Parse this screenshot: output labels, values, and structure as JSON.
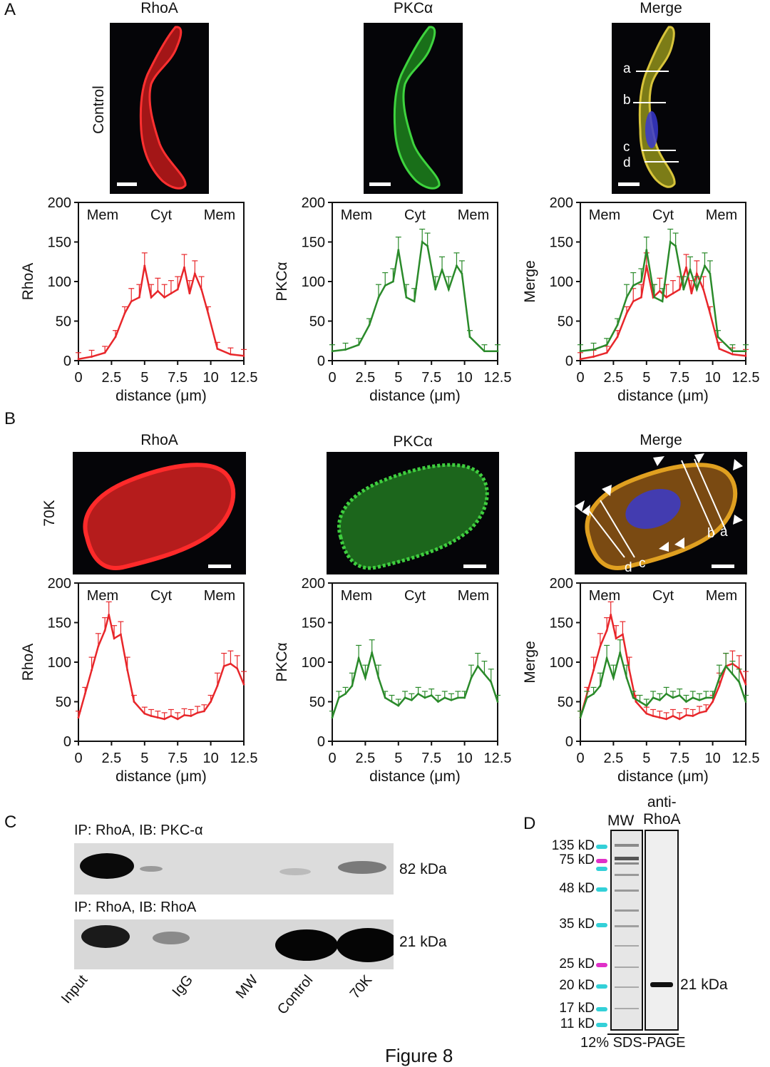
{
  "panels": {
    "A": "A",
    "B": "B",
    "C": "C",
    "D": "D"
  },
  "panelA": {
    "titles": [
      "RhoA",
      "PKCα",
      "Merge"
    ],
    "row_label": "Control",
    "line_labels": [
      "a",
      "b",
      "c",
      "d"
    ]
  },
  "panelB": {
    "titles": [
      "RhoA",
      "PKCα",
      "Merge"
    ],
    "row_label": "70K",
    "line_labels": [
      "a",
      "b",
      "c",
      "d"
    ]
  },
  "chart_data": [
    {
      "id": "A-RhoA",
      "type": "line",
      "ylabel": "RhoA",
      "xlabel": "distance (μm)",
      "ylim": [
        0,
        200
      ],
      "xlim": [
        0,
        12.5
      ],
      "yticks": [
        0,
        50,
        100,
        150,
        200
      ],
      "xticks": [
        "0",
        "2.5",
        "5",
        "7.5",
        "10",
        "12.5"
      ],
      "annotations": [
        "Mem",
        "Cyt",
        "Mem"
      ],
      "series": [
        {
          "color": "#e8262a",
          "x": [
            0,
            1,
            2,
            2.8,
            3.5,
            4,
            4.6,
            5,
            5.5,
            6,
            6.5,
            7,
            7.5,
            8,
            8.4,
            8.8,
            9.3,
            9.8,
            10.5,
            11.5,
            12.5
          ],
          "y": [
            2,
            5,
            10,
            30,
            60,
            75,
            80,
            120,
            80,
            88,
            80,
            85,
            90,
            118,
            85,
            110,
            90,
            60,
            15,
            8,
            6
          ]
        }
      ]
    },
    {
      "id": "A-PKC",
      "type": "line",
      "ylabel": "PKCα",
      "xlabel": "distance (μm)",
      "ylim": [
        0,
        200
      ],
      "xlim": [
        0,
        12.5
      ],
      "yticks": [
        0,
        50,
        100,
        150,
        200
      ],
      "xticks": [
        "0",
        "2.5",
        "5",
        "7.5",
        "10",
        "12.5"
      ],
      "annotations": [
        "Mem",
        "Cyt",
        "Mem"
      ],
      "series": [
        {
          "color": "#2a8a2a",
          "x": [
            0,
            1,
            2,
            2.8,
            3.5,
            4,
            4.6,
            5,
            5.6,
            6.2,
            6.8,
            7.2,
            7.8,
            8.3,
            8.8,
            9.4,
            9.8,
            10.4,
            11.5,
            12.5
          ],
          "y": [
            12,
            14,
            20,
            45,
            80,
            95,
            100,
            140,
            80,
            75,
            150,
            145,
            90,
            115,
            90,
            120,
            110,
            30,
            12,
            12
          ]
        }
      ]
    },
    {
      "id": "A-Merge",
      "type": "line",
      "ylabel": "Merge",
      "xlabel": "distance (μm)",
      "ylim": [
        0,
        200
      ],
      "xlim": [
        0,
        12.5
      ],
      "yticks": [
        0,
        50,
        100,
        150,
        200
      ],
      "xticks": [
        "0",
        "2.5",
        "5",
        "7.5",
        "10",
        "12.5"
      ],
      "annotations": [
        "Mem",
        "Cyt",
        "Mem"
      ],
      "series": [
        {
          "color": "#e8262a",
          "x": [
            0,
            1,
            2,
            2.8,
            3.5,
            4,
            4.6,
            5,
            5.5,
            6,
            6.5,
            7,
            7.5,
            8,
            8.4,
            8.8,
            9.3,
            9.8,
            10.5,
            11.5,
            12.5
          ],
          "y": [
            2,
            5,
            10,
            30,
            60,
            75,
            80,
            120,
            80,
            88,
            80,
            85,
            90,
            118,
            85,
            110,
            90,
            60,
            15,
            8,
            6
          ]
        },
        {
          "color": "#2a8a2a",
          "x": [
            0,
            1,
            2,
            2.8,
            3.5,
            4,
            4.6,
            5,
            5.6,
            6.2,
            6.8,
            7.2,
            7.8,
            8.3,
            8.8,
            9.4,
            9.8,
            10.4,
            11.5,
            12.5
          ],
          "y": [
            12,
            14,
            20,
            45,
            80,
            95,
            100,
            140,
            80,
            75,
            150,
            145,
            90,
            115,
            90,
            120,
            110,
            30,
            12,
            12
          ]
        }
      ]
    },
    {
      "id": "B-RhoA",
      "type": "line",
      "ylabel": "RhoA",
      "xlabel": "distance (μm)",
      "ylim": [
        0,
        200
      ],
      "xlim": [
        0,
        12.5
      ],
      "yticks": [
        0,
        50,
        100,
        150,
        200
      ],
      "xticks": [
        "0",
        "2.5",
        "5",
        "7.5",
        "10",
        "12.5"
      ],
      "annotations": [
        "Mem",
        "Cyt",
        "Mem"
      ],
      "series": [
        {
          "color": "#e8262a",
          "x": [
            0,
            0.5,
            1,
            1.5,
            2,
            2.3,
            2.7,
            3.2,
            3.7,
            4.2,
            5,
            5.5,
            6,
            6.5,
            7,
            7.5,
            8,
            8.5,
            9,
            9.5,
            10,
            10.5,
            11,
            11.5,
            12,
            12.5
          ],
          "y": [
            30,
            60,
            90,
            120,
            140,
            160,
            130,
            135,
            90,
            50,
            35,
            32,
            30,
            28,
            32,
            28,
            33,
            32,
            36,
            38,
            50,
            70,
            95,
            98,
            92,
            72
          ]
        }
      ]
    },
    {
      "id": "B-PKC",
      "type": "line",
      "ylabel": "PKCα",
      "xlabel": "distance (μm)",
      "ylim": [
        0,
        200
      ],
      "xlim": [
        0,
        12.5
      ],
      "yticks": [
        0,
        50,
        100,
        150,
        200
      ],
      "xticks": [
        "0",
        "2.5",
        "5",
        "7.5",
        "10",
        "12.5"
      ],
      "annotations": [
        "Mem",
        "Cyt",
        "Mem"
      ],
      "series": [
        {
          "color": "#2a8a2a",
          "x": [
            0,
            0.5,
            1,
            1.5,
            2,
            2.5,
            3,
            3.5,
            4,
            4.5,
            5,
            5.5,
            6,
            6.5,
            7,
            7.5,
            8,
            8.5,
            9,
            9.5,
            10,
            10.5,
            11,
            11.5,
            12,
            12.5
          ],
          "y": [
            30,
            55,
            60,
            70,
            105,
            80,
            112,
            80,
            55,
            50,
            45,
            55,
            52,
            60,
            55,
            58,
            50,
            55,
            52,
            55,
            55,
            80,
            95,
            85,
            75,
            50
          ]
        }
      ]
    },
    {
      "id": "B-Merge",
      "type": "line",
      "ylabel": "Merge",
      "xlabel": "distance (μm)",
      "ylim": [
        0,
        200
      ],
      "xlim": [
        0,
        12.5
      ],
      "yticks": [
        0,
        50,
        100,
        150,
        200
      ],
      "xticks": [
        "0",
        "2.5",
        "5",
        "7.5",
        "10",
        "12.5"
      ],
      "annotations": [
        "Mem",
        "Cyt",
        "Mem"
      ],
      "series": [
        {
          "color": "#e8262a",
          "x": [
            0,
            0.5,
            1,
            1.5,
            2,
            2.3,
            2.7,
            3.2,
            3.7,
            4.2,
            5,
            5.5,
            6,
            6.5,
            7,
            7.5,
            8,
            8.5,
            9,
            9.5,
            10,
            10.5,
            11,
            11.5,
            12,
            12.5
          ],
          "y": [
            30,
            60,
            90,
            120,
            140,
            160,
            130,
            135,
            90,
            50,
            35,
            32,
            30,
            28,
            32,
            28,
            33,
            32,
            36,
            38,
            50,
            70,
            95,
            98,
            92,
            72
          ]
        },
        {
          "color": "#2a8a2a",
          "x": [
            0,
            0.5,
            1,
            1.5,
            2,
            2.5,
            3,
            3.5,
            4,
            4.5,
            5,
            5.5,
            6,
            6.5,
            7,
            7.5,
            8,
            8.5,
            9,
            9.5,
            10,
            10.5,
            11,
            11.5,
            12,
            12.5
          ],
          "y": [
            30,
            55,
            60,
            70,
            105,
            80,
            112,
            80,
            55,
            50,
            45,
            55,
            52,
            60,
            55,
            58,
            50,
            55,
            52,
            55,
            55,
            80,
            95,
            85,
            75,
            50
          ]
        }
      ]
    }
  ],
  "panelC": {
    "blot1_title": "IP: RhoA, IB: PKC-α",
    "blot1_size": "82 kDa",
    "blot2_title": "IP: RhoA, IB: RhoA",
    "blot2_size": "21 kDa",
    "lanes": [
      "Input",
      "IgG",
      "MW",
      "Control",
      "70K"
    ]
  },
  "panelD": {
    "col_mw": "MW",
    "col_anti": "anti-\nRhoA",
    "markers": [
      "135 kD",
      "75 kD",
      "48 kD",
      "35 kD",
      "25 kD",
      "20 kD",
      "17 kD",
      "11 kD"
    ],
    "band_label": "21 kDa",
    "gel_label": "12% SDS-PAGE"
  },
  "footer_text": "Figure 8"
}
